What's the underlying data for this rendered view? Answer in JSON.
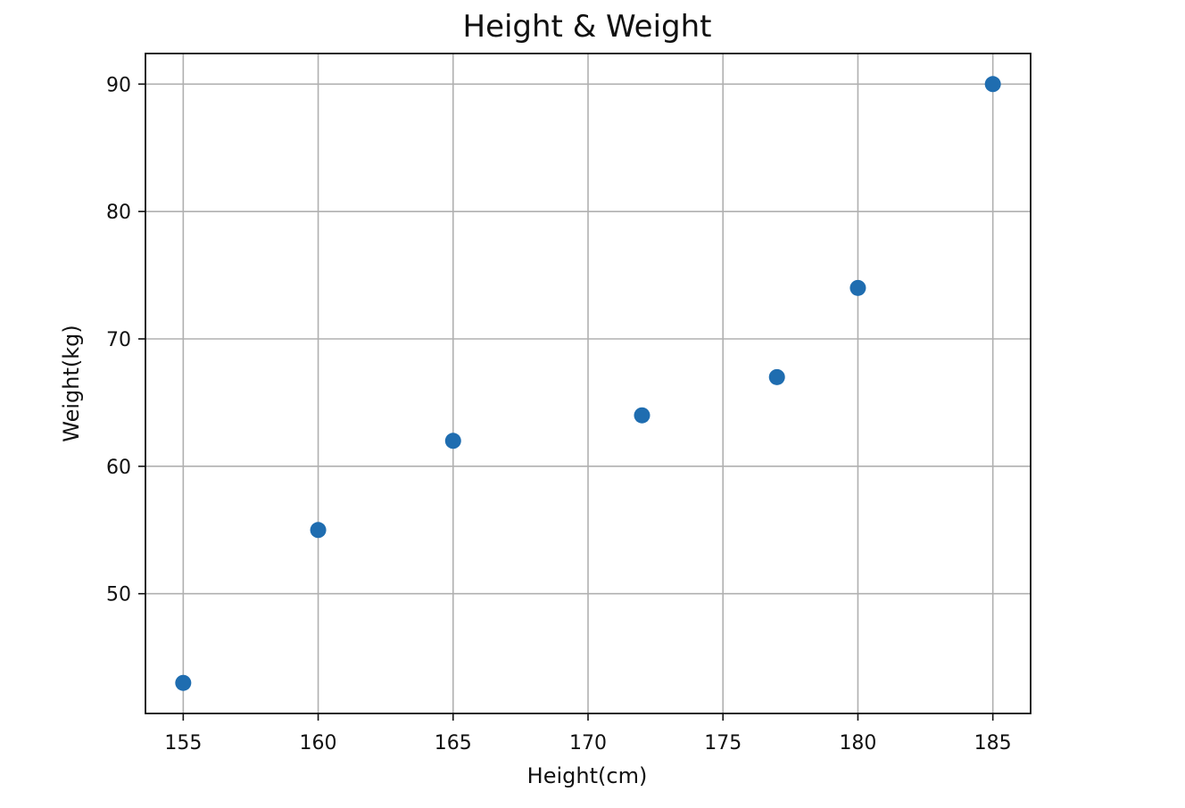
{
  "chart_data": {
    "type": "scatter",
    "title": "Height & Weight",
    "xlabel": "Height(cm)",
    "ylabel": "Weight(kg)",
    "x": [
      155,
      160,
      165,
      172,
      177,
      180,
      185
    ],
    "y": [
      43,
      55,
      62,
      64,
      67,
      74,
      90
    ],
    "xlim": [
      153.6,
      186.4
    ],
    "ylim": [
      40.6,
      92.4
    ],
    "xticks": [
      155,
      160,
      165,
      170,
      175,
      180,
      185
    ],
    "yticks": [
      50,
      60,
      70,
      80,
      90
    ],
    "grid": true,
    "marker_color": "#1f6db0"
  }
}
